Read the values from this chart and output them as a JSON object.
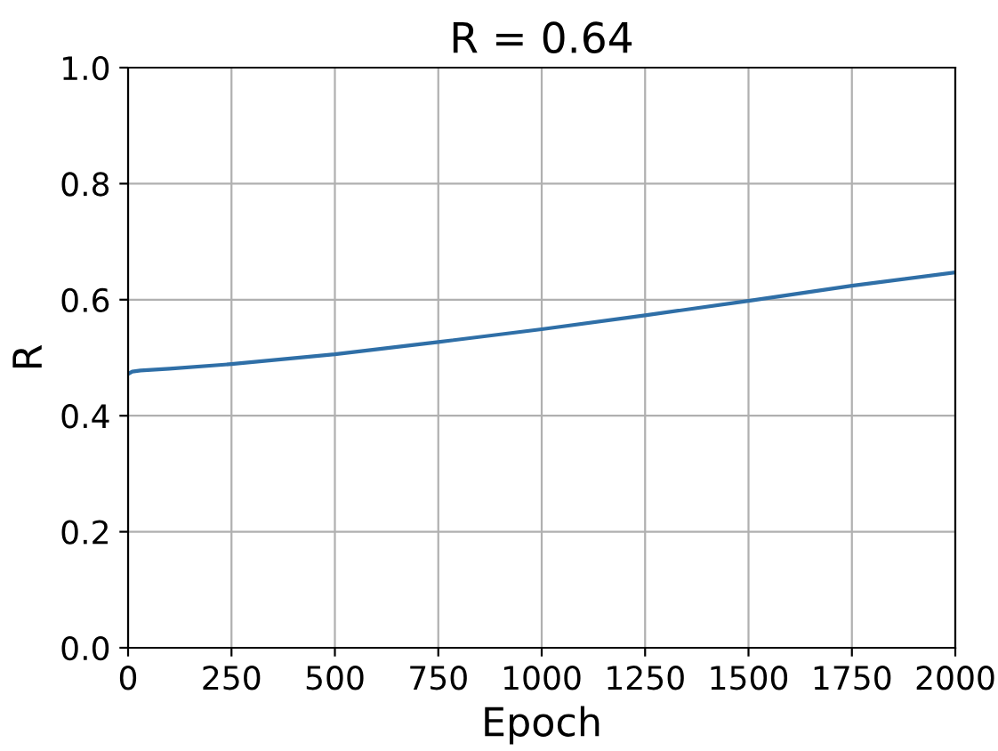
{
  "chart_data": {
    "type": "line",
    "title": "R = 0.64",
    "xlabel": "Epoch",
    "ylabel": "R",
    "x": [
      0,
      10,
      30,
      100,
      250,
      500,
      750,
      1000,
      1250,
      1500,
      1750,
      2000
    ],
    "series": [
      {
        "color": "#2f6fa7",
        "values": [
          0.472,
          0.476,
          0.478,
          0.481,
          0.489,
          0.506,
          0.527,
          0.549,
          0.573,
          0.598,
          0.624,
          0.647
        ]
      }
    ],
    "xlim": [
      0,
      2000
    ],
    "ylim": [
      0,
      1.0
    ],
    "xticks": [
      0,
      250,
      500,
      750,
      1000,
      1250,
      1500,
      1750,
      2000
    ],
    "yticks": [
      {
        "value": 0,
        "label": "0.0"
      },
      {
        "value": 0.2,
        "label": "0.2"
      },
      {
        "value": 0.4,
        "label": "0.4"
      },
      {
        "value": 0.6,
        "label": "0.6"
      },
      {
        "value": 0.8,
        "label": "0.8"
      },
      {
        "value": 1.0,
        "label": "1.0"
      }
    ],
    "grid": true,
    "marker": "none",
    "line_style": "solid"
  }
}
